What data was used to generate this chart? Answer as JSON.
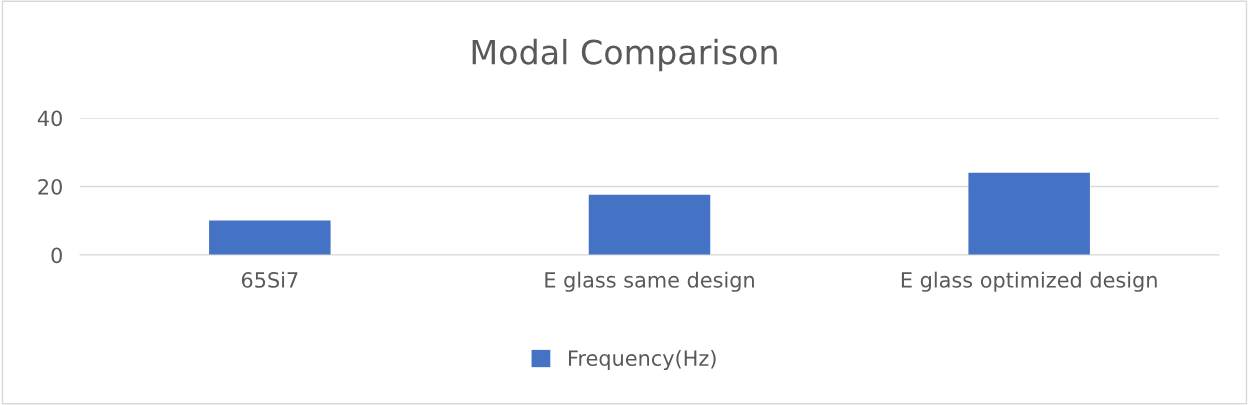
{
  "chart_data": {
    "type": "bar",
    "title": "Modal Comparison",
    "categories": [
      "65Si7",
      "E glass same design",
      "E glass optimized design"
    ],
    "series": [
      {
        "name": "Frequency(Hz)",
        "color": "#4472c4",
        "values": [
          10.1,
          17.6,
          24.0
        ]
      }
    ],
    "ylim": [
      0,
      40
    ],
    "yticks": [
      0,
      20,
      40
    ],
    "grid": "y",
    "legend": "bottom"
  }
}
